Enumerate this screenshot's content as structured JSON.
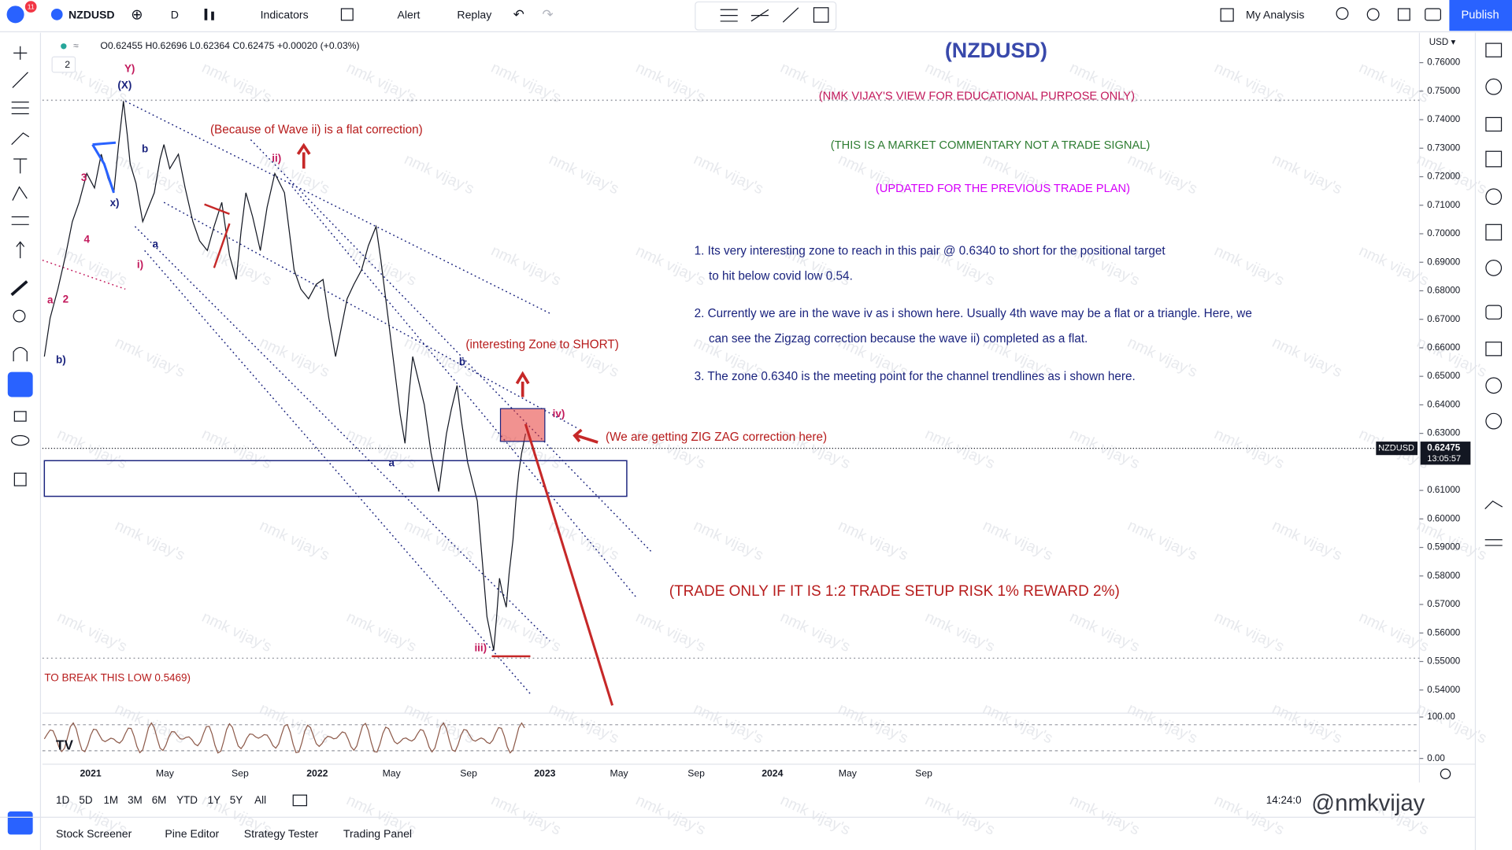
{
  "toolbar": {
    "symbol": "NZDUSD",
    "interval": "D",
    "indicators": "Indicators",
    "alert": "Alert",
    "replay": "Replay",
    "layout_name": "My Analysis",
    "publish": "Publish",
    "badge": "11"
  },
  "legend": {
    "ohlc": "O0.62455 H0.62696 L0.62364 C0.62475 +0.00020 (+0.03%)",
    "indicator_count": "2"
  },
  "price_axis": {
    "currency": "USD ▾",
    "ticks": [
      {
        "value": 0.76,
        "label": "0.76000"
      },
      {
        "value": 0.75,
        "label": "0.75000"
      },
      {
        "value": 0.74,
        "label": "0.74000"
      },
      {
        "value": 0.73,
        "label": "0.73000"
      },
      {
        "value": 0.72,
        "label": "0.72000"
      },
      {
        "value": 0.71,
        "label": "0.71000"
      },
      {
        "value": 0.7,
        "label": "0.70000"
      },
      {
        "value": 0.69,
        "label": "0.69000"
      },
      {
        "value": 0.68,
        "label": "0.68000"
      },
      {
        "value": 0.67,
        "label": "0.67000"
      },
      {
        "value": 0.66,
        "label": "0.66000"
      },
      {
        "value": 0.65,
        "label": "0.65000"
      },
      {
        "value": 0.64,
        "label": "0.64000"
      },
      {
        "value": 0.63,
        "label": "0.63000"
      },
      {
        "value": 0.61,
        "label": "0.61000"
      },
      {
        "value": 0.6,
        "label": "0.60000"
      },
      {
        "value": 0.59,
        "label": "0.59000"
      },
      {
        "value": 0.58,
        "label": "0.58000"
      },
      {
        "value": 0.57,
        "label": "0.57000"
      },
      {
        "value": 0.56,
        "label": "0.56000"
      },
      {
        "value": 0.55,
        "label": "0.55000"
      },
      {
        "value": 0.54,
        "label": "0.54000"
      }
    ],
    "last_price": {
      "symbol": "NZDUSD",
      "value": 0.62475,
      "label": "0.62475",
      "countdown": "13:05:57"
    },
    "oscillator_ticks": [
      {
        "value": 100,
        "label": "100.00"
      },
      {
        "value": 0,
        "label": "0.00"
      }
    ]
  },
  "time_axis": {
    "labels": [
      "2021",
      "May",
      "Sep",
      "2022",
      "May",
      "Sep",
      "2023",
      "May",
      "Sep",
      "2024",
      "May",
      "Sep"
    ]
  },
  "annotations": {
    "title": "(NZDUSD)",
    "disclaimer": "(NMK VIJAY'S VIEW FOR EDUCATIONAL PURPOSE ONLY)",
    "commentary": "(THIS IS A MARKET COMMENTARY NOT A TRADE SIGNAL)",
    "updated": "(UPDATED FOR THE PREVIOUS TRADE PLAN)",
    "notes": [
      [
        "1. Its very interesting zone to reach in this pair @ 0.6340 to short for the positional target",
        "to hit below covid low 0.54."
      ],
      [
        "2. Currently we are in the wave iv as i shown here. Usually 4th wave may be a flat or a triangle. Here, we",
        "can see the Zigzag correction because the wave ii) completed as a flat."
      ],
      [
        "3. The zone 0.6340 is the meeting point for the channel trendlines as i shown here."
      ]
    ],
    "flat_note": "(Because of Wave ii) is a flat correction)",
    "zone_label": "(interesting Zone to SHORT)",
    "zigzag_label": "(We are getting ZIG ZAG correction here)",
    "trade_rule": "(TRADE ONLY IF IT IS 1:2 TRADE SETUP RISK 1% REWARD 2%)",
    "break_low": "TO BREAK THIS LOW 0.5469)",
    "waves": [
      "Y)",
      "(X)",
      "ii)",
      "b",
      "a",
      "i)",
      "b)",
      "2",
      "a",
      "4",
      "3",
      "x)",
      "b",
      "a",
      "iii)",
      "iv)"
    ]
  },
  "range_buttons": [
    "1D",
    "5D",
    "1M",
    "3M",
    "6M",
    "YTD",
    "1Y",
    "5Y",
    "All"
  ],
  "clock": "14:24:0",
  "bottom_tabs": [
    "Stock Screener",
    "Pine Editor",
    "Strategy Tester",
    "Trading Panel"
  ],
  "watermark": "nmk vijay's",
  "signature": "@nmkvijay"
}
